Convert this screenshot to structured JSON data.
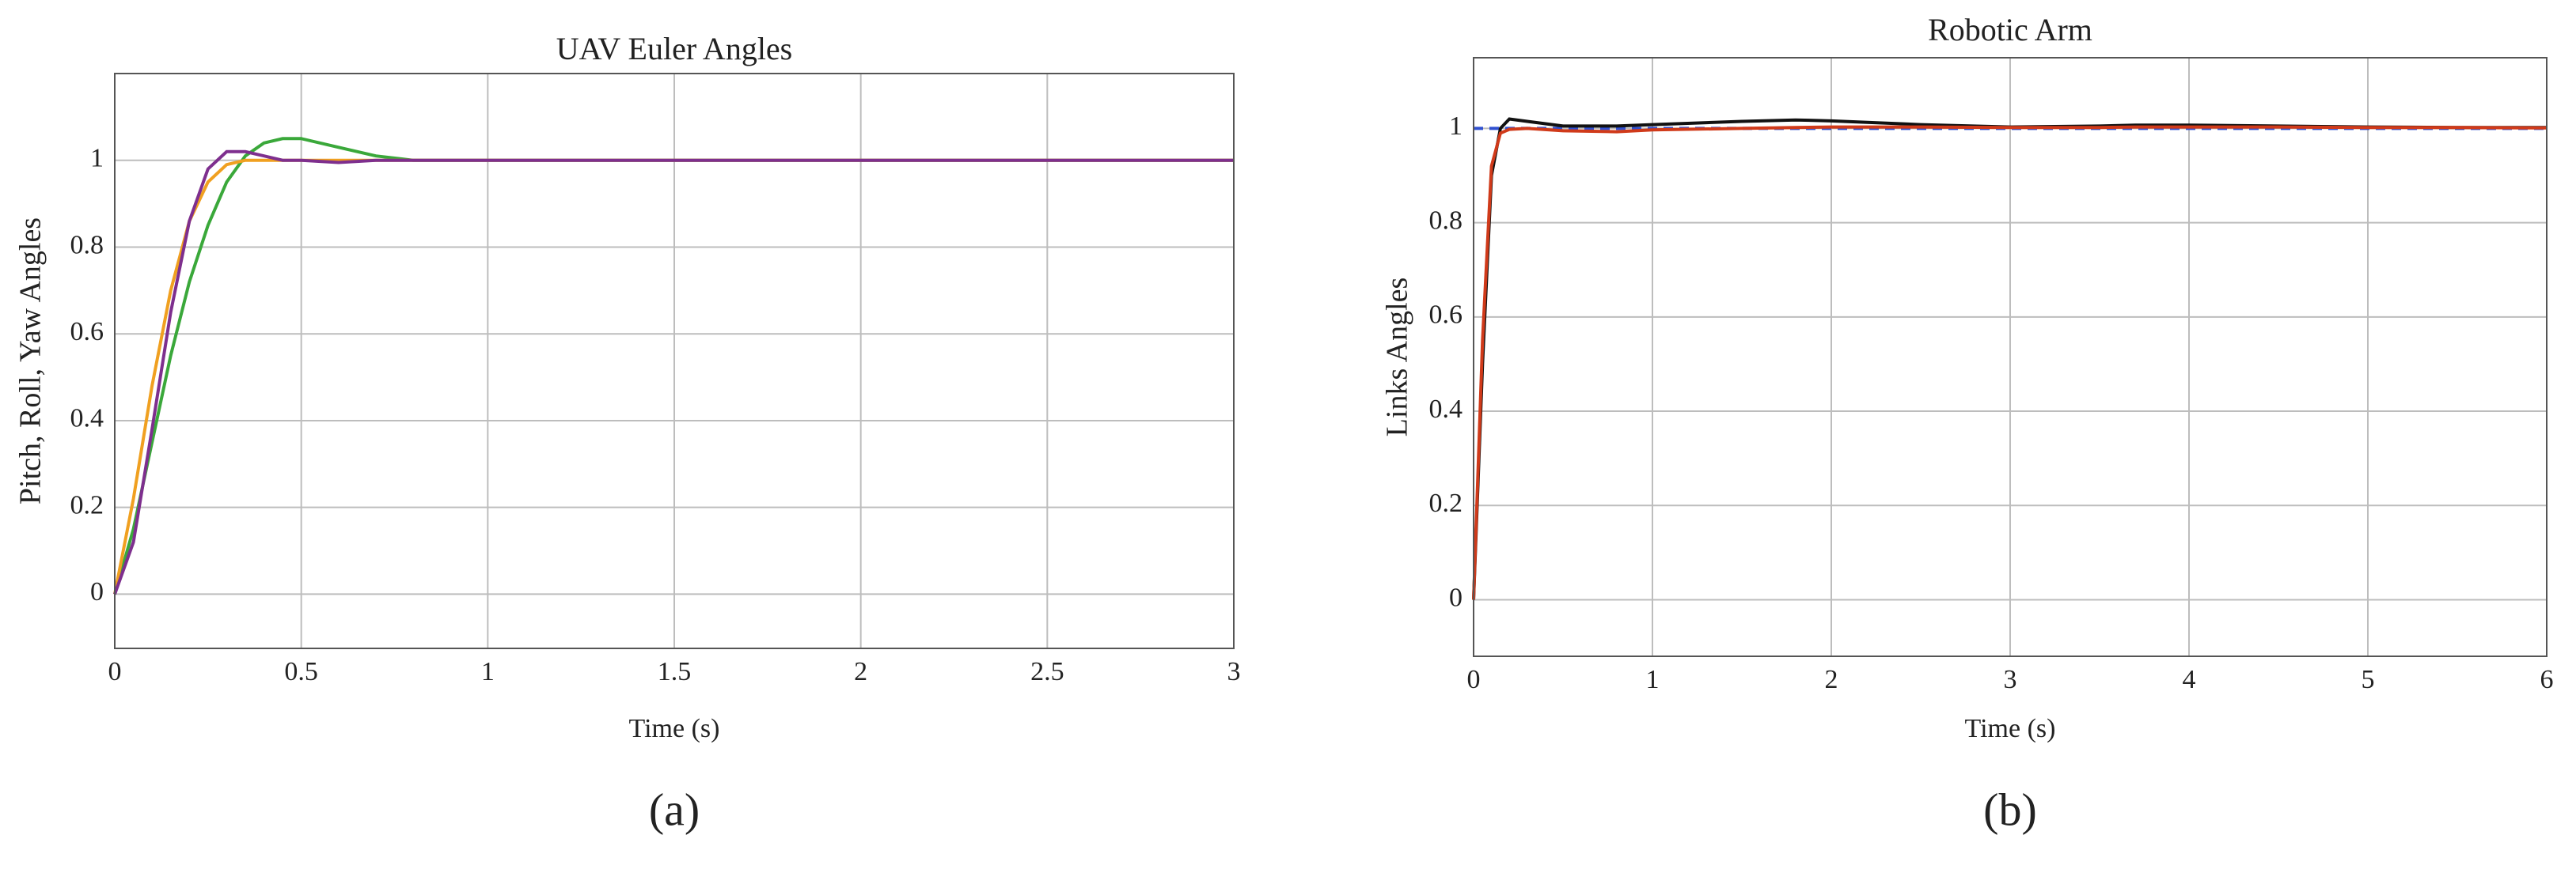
{
  "chart_data": [
    {
      "type": "line",
      "title": "UAV Euler Angles",
      "x_label": "Time (s)",
      "y_label": "Pitch, Roll, Yaw Angles",
      "panel_label": "(a)",
      "x": [
        0,
        0.05,
        0.1,
        0.15,
        0.2,
        0.25,
        0.3,
        0.35,
        0.4,
        0.45,
        0.5,
        0.6,
        0.7,
        0.8,
        0.9,
        1.0,
        1.5,
        2,
        2.5,
        3
      ],
      "series": [
        {
          "color": "#3aa83a",
          "values": [
            0,
            0.15,
            0.35,
            0.55,
            0.72,
            0.85,
            0.95,
            1.01,
            1.04,
            1.05,
            1.05,
            1.03,
            1.01,
            1.0,
            1.0,
            1.0,
            1,
            1,
            1,
            1
          ]
        },
        {
          "color": "#f0a020",
          "values": [
            0,
            0.22,
            0.48,
            0.7,
            0.86,
            0.95,
            0.99,
            1.0,
            1.0,
            1.0,
            1.0,
            1.0,
            1.0,
            1.0,
            1.0,
            1.0,
            1,
            1,
            1,
            1
          ]
        },
        {
          "color": "#7e2f8e",
          "values": [
            0,
            0.12,
            0.38,
            0.65,
            0.86,
            0.98,
            1.02,
            1.02,
            1.01,
            1.0,
            1.0,
            0.995,
            1.0,
            1.0,
            1.0,
            1.0,
            1,
            1,
            1,
            1
          ]
        }
      ],
      "xlim": [
        0,
        3
      ],
      "ylim": [
        -0.125,
        1.2
      ],
      "xticks": [
        0,
        0.5,
        1,
        1.5,
        2,
        2.5,
        3
      ],
      "yticks": [
        0,
        0.2,
        0.4,
        0.6,
        0.8,
        1
      ],
      "grid": true
    },
    {
      "type": "line",
      "title": "Robotic Arm",
      "x_label": "Time (s)",
      "y_label": "Links Angles",
      "panel_label": "(b)",
      "x": [
        0,
        0.05,
        0.1,
        0.15,
        0.2,
        0.3,
        0.5,
        0.8,
        1,
        1.5,
        1.8,
        2,
        2.5,
        3,
        3.5,
        3.7,
        4,
        4.5,
        5,
        5.5,
        6
      ],
      "series": [
        {
          "color": "#3050d0",
          "dash": true,
          "values": [
            1,
            1,
            1,
            1,
            1,
            1,
            1,
            1,
            1,
            1,
            1,
            1,
            1,
            1,
            1,
            1,
            1,
            1,
            1,
            1,
            1
          ]
        },
        {
          "color": "#111111",
          "values": [
            0,
            0.5,
            0.9,
            1.0,
            1.02,
            1.015,
            1.005,
            1.005,
            1.008,
            1.015,
            1.018,
            1.016,
            1.008,
            1.003,
            1.005,
            1.007,
            1.007,
            1.005,
            1.003,
            1.002,
            1.002
          ]
        },
        {
          "color": "#d03a1a",
          "values": [
            0,
            0.55,
            0.92,
            0.99,
            0.998,
            1.0,
            0.995,
            0.993,
            0.997,
            1.0,
            1.002,
            1.003,
            1.003,
            1.002,
            1.002,
            1.003,
            1.003,
            1.003,
            1.002,
            1.002,
            1.001
          ]
        }
      ],
      "xlim": [
        0,
        6
      ],
      "ylim": [
        -0.12,
        1.15
      ],
      "xticks": [
        0,
        1,
        2,
        3,
        4,
        5,
        6
      ],
      "yticks": [
        0,
        0.2,
        0.4,
        0.6,
        0.8,
        1
      ],
      "grid": true
    }
  ]
}
